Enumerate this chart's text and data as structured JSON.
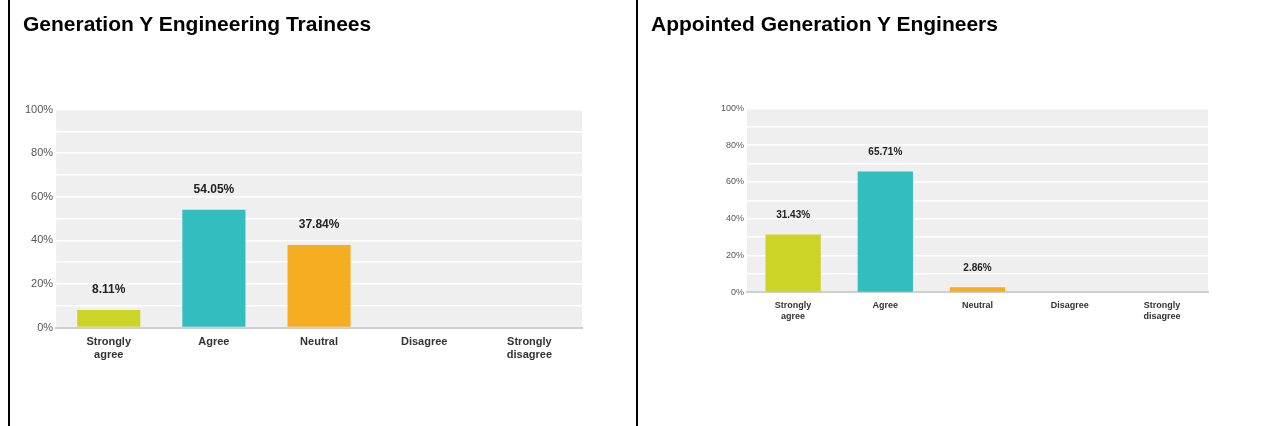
{
  "chart_data": [
    {
      "type": "bar",
      "title": "Generation Y Engineering Trainees",
      "categories": [
        "Strongly agree",
        "Agree",
        "Neutral",
        "Disagree",
        "Strongly disagree"
      ],
      "values": [
        8.11,
        54.05,
        37.84,
        0,
        0
      ],
      "colors": [
        "#cdd428",
        "#33bdbf",
        "#f5ad22",
        "#cdd428",
        "#33bdbf"
      ],
      "value_labels": [
        "8.11%",
        "54.05%",
        "37.84%",
        null,
        null
      ],
      "ylim": [
        0,
        100
      ],
      "yticks": [
        {
          "value": 0,
          "label": "0%"
        },
        {
          "value": 10,
          "label": null
        },
        {
          "value": 20,
          "label": "20%"
        },
        {
          "value": 30,
          "label": null
        },
        {
          "value": 40,
          "label": "40%"
        },
        {
          "value": 50,
          "label": null
        },
        {
          "value": 60,
          "label": "60%"
        },
        {
          "value": 70,
          "label": null
        },
        {
          "value": 80,
          "label": "80%"
        },
        {
          "value": 90,
          "label": null
        },
        {
          "value": 100,
          "label": "100%"
        }
      ],
      "grid": "y",
      "legend": false
    },
    {
      "type": "bar",
      "title": "Appointed Generation Y Engineers",
      "categories": [
        "Strongly agree",
        "Agree",
        "Neutral",
        "Disagree",
        "Strongly disagree"
      ],
      "values": [
        31.43,
        65.71,
        2.86,
        0,
        0
      ],
      "colors": [
        "#cdd428",
        "#33bdbf",
        "#f5ad22",
        "#cdd428",
        "#33bdbf"
      ],
      "value_labels": [
        "31.43%",
        "65.71%",
        "2.86%",
        null,
        null
      ],
      "ylim": [
        0,
        100
      ],
      "yticks": [
        {
          "value": 0,
          "label": "0%"
        },
        {
          "value": 10,
          "label": null
        },
        {
          "value": 20,
          "label": "20%"
        },
        {
          "value": 30,
          "label": null
        },
        {
          "value": 40,
          "label": "40%"
        },
        {
          "value": 50,
          "label": null
        },
        {
          "value": 60,
          "label": "60%"
        },
        {
          "value": 70,
          "label": null
        },
        {
          "value": 80,
          "label": "80%"
        },
        {
          "value": 90,
          "label": null
        },
        {
          "value": 100,
          "label": "100%"
        }
      ],
      "grid": "y",
      "legend": false
    }
  ]
}
